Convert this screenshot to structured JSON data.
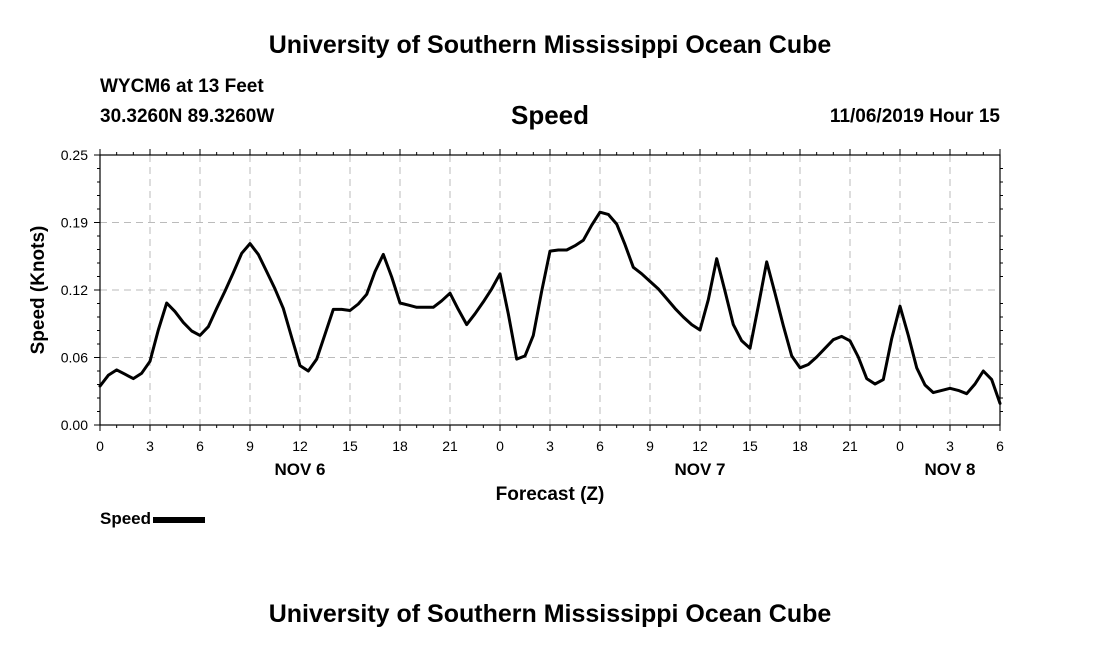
{
  "header": {
    "title": "University of Southern Mississippi Ocean Cube",
    "station": "WYCM6 at 13 Feet",
    "coordinates": "30.3260N 89.3260W",
    "variable": "Speed",
    "timestamp": "11/06/2019 Hour 15"
  },
  "footer": {
    "title": "University of Southern Mississippi Ocean Cube"
  },
  "legend": {
    "label": "Speed",
    "color": "#000000"
  },
  "chart_data": {
    "type": "line",
    "title": "Speed",
    "xlabel": "Forecast (Z)",
    "ylabel": "Speed (Knots)",
    "x_unit": "hours from NOV 6 00Z",
    "xlim": [
      0,
      54
    ],
    "ylim": [
      0,
      0.25
    ],
    "y_ticks": [
      "0.00",
      "0.06",
      "0.12",
      "0.19",
      "0.25"
    ],
    "y_tick_values": [
      0.0,
      0.0625,
      0.125,
      0.1875,
      0.25
    ],
    "x_tick_labels": [
      "0",
      "3",
      "6",
      "9",
      "12",
      "15",
      "18",
      "21",
      "0",
      "3",
      "6",
      "9",
      "12",
      "15",
      "18",
      "21",
      "0",
      "3",
      "6"
    ],
    "day_labels": [
      {
        "label": "NOV 6",
        "hour": 12
      },
      {
        "label": "NOV 7",
        "hour": 36
      },
      {
        "label": "NOV 8",
        "hour": 51
      }
    ],
    "grid": true,
    "series": [
      {
        "name": "Speed",
        "color": "#000000",
        "x": [
          0,
          0.5,
          1,
          1.5,
          2,
          2.5,
          3,
          3.5,
          4,
          4.5,
          5,
          5.5,
          6,
          6.5,
          7,
          7.5,
          8,
          8.5,
          9,
          9.5,
          10,
          10.5,
          11,
          11.5,
          12,
          12.5,
          13,
          13.5,
          14,
          14.5,
          15,
          15.5,
          16,
          16.5,
          17,
          17.5,
          18,
          18.5,
          19,
          19.5,
          20,
          20.5,
          21,
          21.5,
          22,
          22.5,
          23,
          23.5,
          24,
          24.5,
          25,
          25.5,
          26,
          26.5,
          27,
          27.5,
          28,
          28.5,
          29,
          29.5,
          30,
          30.5,
          31,
          31.5,
          32,
          32.5,
          33,
          33.5,
          34,
          34.5,
          35,
          35.5,
          36,
          36.5,
          37,
          37.5,
          38,
          38.5,
          39,
          39.5,
          40,
          40.5,
          41,
          41.5,
          42,
          42.5,
          43,
          43.5,
          44,
          44.5,
          45,
          45.5,
          46,
          46.5,
          47,
          47.5,
          48,
          48.5,
          49,
          49.5,
          50,
          50.5,
          51,
          51.5,
          52,
          52.5,
          53,
          53.5,
          54
        ],
        "values": [
          0.036,
          0.046,
          0.051,
          0.047,
          0.043,
          0.048,
          0.059,
          0.088,
          0.113,
          0.105,
          0.095,
          0.087,
          0.083,
          0.091,
          0.108,
          0.124,
          0.141,
          0.159,
          0.168,
          0.158,
          0.142,
          0.126,
          0.108,
          0.081,
          0.055,
          0.05,
          0.061,
          0.084,
          0.107,
          0.107,
          0.106,
          0.112,
          0.121,
          0.142,
          0.158,
          0.137,
          0.113,
          0.111,
          0.109,
          0.109,
          0.109,
          0.115,
          0.122,
          0.107,
          0.093,
          0.103,
          0.114,
          0.126,
          0.14,
          0.103,
          0.061,
          0.064,
          0.083,
          0.124,
          0.161,
          0.162,
          0.162,
          0.166,
          0.171,
          0.185,
          0.197,
          0.195,
          0.186,
          0.167,
          0.146,
          0.14,
          0.133,
          0.126,
          0.117,
          0.108,
          0.1,
          0.093,
          0.088,
          0.116,
          0.154,
          0.124,
          0.093,
          0.078,
          0.071,
          0.11,
          0.151,
          0.122,
          0.092,
          0.064,
          0.053,
          0.056,
          0.063,
          0.071,
          0.079,
          0.082,
          0.078,
          0.063,
          0.043,
          0.038,
          0.042,
          0.08,
          0.11,
          0.083,
          0.053,
          0.037,
          0.03,
          0.032,
          0.034,
          0.032,
          0.029,
          0.038,
          0.05,
          0.042,
          0.02
        ]
      }
    ]
  }
}
